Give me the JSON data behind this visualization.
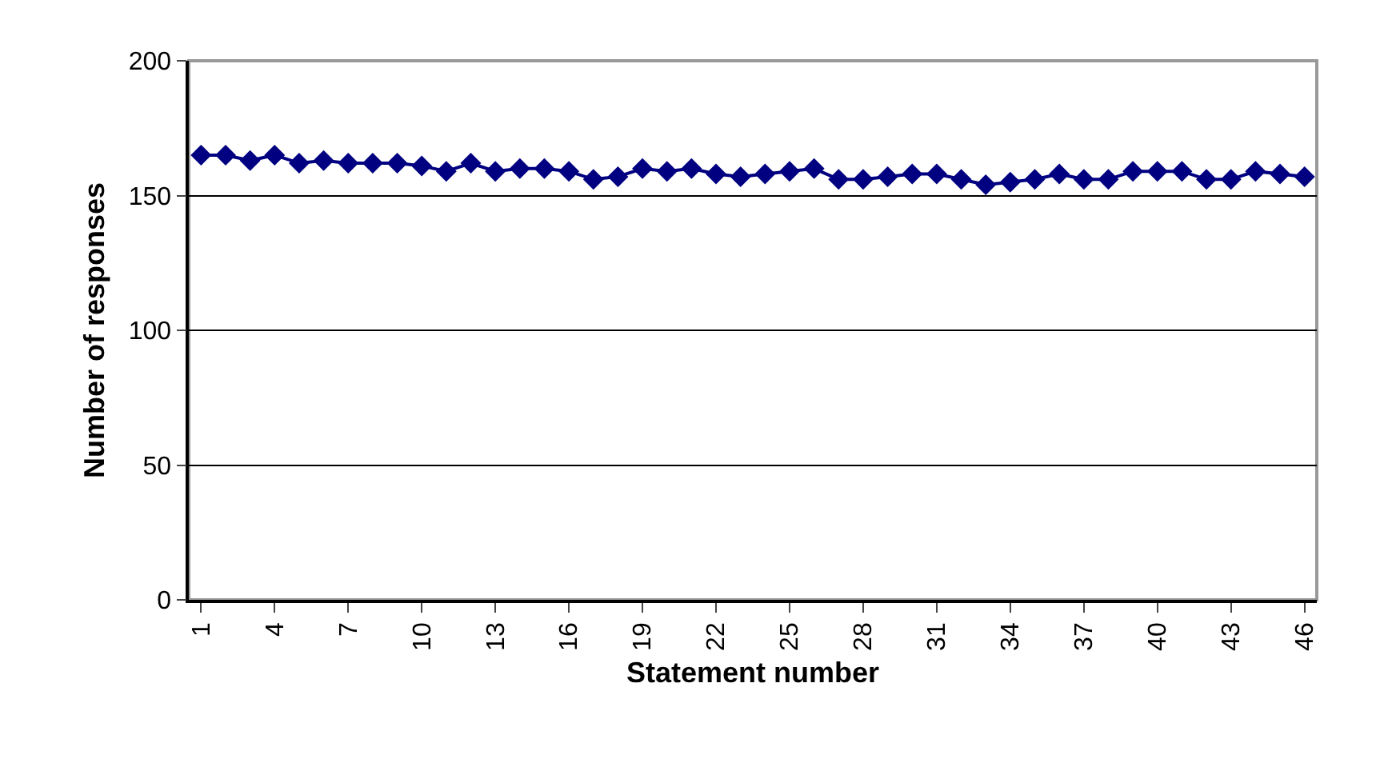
{
  "chart_data": {
    "type": "line",
    "xlabel": "Statement number",
    "ylabel": "Number of responses",
    "categories": [
      "1",
      null,
      null,
      "4",
      null,
      null,
      "7",
      null,
      null,
      "10",
      null,
      null,
      "13",
      null,
      null,
      "16",
      null,
      null,
      "19",
      null,
      null,
      "22",
      null,
      null,
      "25",
      null,
      null,
      "28",
      null,
      null,
      "31",
      null,
      null,
      "34",
      null,
      null,
      "37",
      null,
      null,
      "40",
      null,
      null,
      "43",
      null,
      null,
      "46"
    ],
    "series": [
      {
        "color": "#000080",
        "values": [
          165,
          165,
          163,
          165,
          162,
          163,
          162,
          162,
          162,
          161,
          159,
          162,
          159,
          160,
          160,
          159,
          156,
          157,
          160,
          159,
          160,
          158,
          157,
          158,
          159,
          160,
          156,
          156,
          157,
          158,
          158,
          156,
          154,
          155,
          156,
          158,
          156,
          156,
          159,
          159,
          159,
          156,
          156,
          159,
          158,
          157
        ]
      }
    ],
    "ylim": [
      0,
      200
    ],
    "yticks": [
      0,
      50,
      100,
      150,
      200
    ],
    "grid": "y",
    "marker": "diamond",
    "line_style": "solid"
  }
}
